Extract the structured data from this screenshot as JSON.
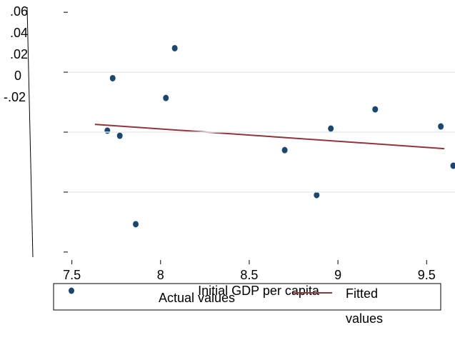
{
  "chart_data": {
    "type": "scatter",
    "x_label": "Initial GDP per capita",
    "xlim": [
      7.28,
      9.66
    ],
    "xticks": [
      7.5,
      8,
      8.5,
      9,
      9.5
    ],
    "ylim": [
      -0.0217,
      0.0617
    ],
    "yticks": [
      {
        "value": 0.06,
        "label": ".06"
      },
      {
        "value": 0.04,
        "label": ".04"
      },
      {
        "value": 0.02,
        "label": ".02"
      },
      0,
      {
        "value": -0.02,
        "label": "-.02"
      }
    ],
    "grid": true,
    "series": [
      {
        "name": "Actual values",
        "color": "#1a476f",
        "x": [
          7.73,
          7.7,
          7.77,
          7.86,
          8.03,
          8.08,
          8.7,
          8.88,
          8.96,
          9.21,
          9.58,
          9.65
        ],
        "values": [
          0.038,
          0.0205,
          0.0188,
          -0.0107,
          0.0314,
          0.048,
          0.014,
          -0.001,
          0.0212,
          0.0276,
          0.0219,
          0.0088
        ]
      },
      {
        "name": "Fitted values",
        "color": "#90353b",
        "line": true,
        "x": [
          7.63,
          9.6
        ],
        "values": [
          0.0226,
          0.0145
        ]
      }
    ]
  }
}
